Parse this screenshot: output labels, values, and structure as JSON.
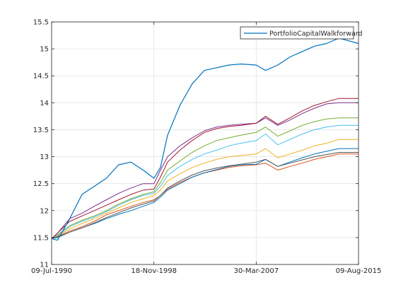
{
  "chart_data": {
    "type": "line",
    "title": "",
    "xlabel": "",
    "ylabel": "",
    "xlim": [
      "1990-07-09",
      "2015-08-09"
    ],
    "ylim": [
      11,
      15.5
    ],
    "x_ticks": [
      "09-Jul-1990",
      "18-Nov-1998",
      "30-Mar-2007",
      "09-Aug-2015"
    ],
    "y_ticks": [
      "11",
      "11.5",
      "12",
      "12.5",
      "13",
      "13.5",
      "14",
      "14.5",
      "15",
      "15.5"
    ],
    "grid": true,
    "legend": {
      "position": "top-right",
      "entries": [
        "PortfolioCapitalWalkforward"
      ]
    },
    "x": [
      "1990-07-09",
      "1991-01-01",
      "1992-01-01",
      "1993-01-01",
      "1994-01-01",
      "1995-01-01",
      "1996-01-01",
      "1997-01-01",
      "1998-01-01",
      "1998-11-18",
      "1999-06-01",
      "2000-01-01",
      "2001-01-01",
      "2002-01-01",
      "2003-01-01",
      "2004-01-01",
      "2005-01-01",
      "2006-01-01",
      "2007-03-30",
      "2008-01-01",
      "2009-01-01",
      "2010-01-01",
      "2011-01-01",
      "2012-01-01",
      "2013-01-01",
      "2014-01-01",
      "2015-08-09"
    ],
    "series": [
      {
        "name": "PortfolioCapitalWalkforward",
        "color": "#0072bd",
        "width": 1.2,
        "values": [
          11.48,
          11.45,
          11.85,
          12.3,
          12.45,
          12.6,
          12.85,
          12.9,
          12.75,
          12.6,
          12.8,
          13.4,
          13.95,
          14.35,
          14.6,
          14.65,
          14.7,
          14.72,
          14.7,
          14.6,
          14.7,
          14.85,
          14.95,
          15.05,
          15.1,
          15.2,
          15.1
        ]
      },
      {
        "color": "#d95319",
        "width": 1.0,
        "values": [
          11.48,
          11.52,
          11.62,
          11.7,
          11.8,
          11.92,
          12.0,
          12.08,
          12.15,
          12.2,
          12.28,
          12.4,
          12.52,
          12.62,
          12.7,
          12.75,
          12.8,
          12.83,
          12.85,
          12.88,
          12.75,
          12.82,
          12.88,
          12.95,
          13.0,
          13.05,
          13.05
        ]
      },
      {
        "color": "#edb120",
        "width": 1.0,
        "values": [
          11.48,
          11.53,
          11.66,
          11.76,
          11.85,
          11.95,
          12.05,
          12.15,
          12.22,
          12.28,
          12.38,
          12.55,
          12.68,
          12.8,
          12.88,
          12.95,
          13.0,
          13.02,
          13.05,
          13.15,
          12.98,
          13.05,
          13.12,
          13.2,
          13.25,
          13.32,
          13.32
        ]
      },
      {
        "color": "#7e2f8e",
        "width": 1.0,
        "values": [
          11.48,
          11.58,
          11.85,
          11.95,
          12.08,
          12.2,
          12.32,
          12.42,
          12.5,
          12.5,
          12.75,
          13.0,
          13.2,
          13.35,
          13.48,
          13.55,
          13.58,
          13.6,
          13.62,
          13.72,
          13.58,
          13.68,
          13.8,
          13.9,
          13.98,
          14.0,
          14.0
        ]
      },
      {
        "color": "#77ac30",
        "width": 1.0,
        "values": [
          11.48,
          11.55,
          11.72,
          11.82,
          11.9,
          12.0,
          12.12,
          12.22,
          12.3,
          12.35,
          12.52,
          12.75,
          12.92,
          13.08,
          13.2,
          13.3,
          13.35,
          13.4,
          13.45,
          13.55,
          13.38,
          13.48,
          13.58,
          13.65,
          13.7,
          13.72,
          13.72
        ]
      },
      {
        "color": "#4dbeee",
        "width": 1.0,
        "values": [
          11.48,
          11.54,
          11.7,
          11.8,
          11.88,
          11.98,
          12.1,
          12.2,
          12.28,
          12.32,
          12.45,
          12.65,
          12.82,
          12.95,
          13.05,
          13.12,
          13.2,
          13.25,
          13.3,
          13.42,
          13.22,
          13.32,
          13.42,
          13.5,
          13.55,
          13.58,
          13.58
        ]
      },
      {
        "color": "#a2142f",
        "width": 1.0,
        "values": [
          11.48,
          11.58,
          11.8,
          11.9,
          12.0,
          12.1,
          12.2,
          12.3,
          12.38,
          12.4,
          12.62,
          12.9,
          13.12,
          13.3,
          13.45,
          13.52,
          13.56,
          13.58,
          13.62,
          13.75,
          13.6,
          13.72,
          13.85,
          13.95,
          14.02,
          14.08,
          14.08
        ]
      },
      {
        "color": "#0072bd",
        "width": 1.0,
        "values": [
          11.48,
          11.5,
          11.6,
          11.68,
          11.76,
          11.85,
          11.93,
          12.0,
          12.08,
          12.15,
          12.25,
          12.38,
          12.5,
          12.62,
          12.7,
          12.76,
          12.82,
          12.85,
          12.86,
          12.95,
          12.82,
          12.9,
          12.98,
          13.05,
          13.1,
          13.15,
          13.15
        ]
      },
      {
        "color": "#555555",
        "width": 1.0,
        "values": [
          11.48,
          11.51,
          11.6,
          11.68,
          11.77,
          11.87,
          11.96,
          12.05,
          12.12,
          12.18,
          12.28,
          12.42,
          12.55,
          12.66,
          12.74,
          12.79,
          12.83,
          12.86,
          12.9,
          12.95,
          12.82,
          12.88,
          12.94,
          13.0,
          13.04,
          13.08,
          13.08
        ]
      }
    ]
  }
}
